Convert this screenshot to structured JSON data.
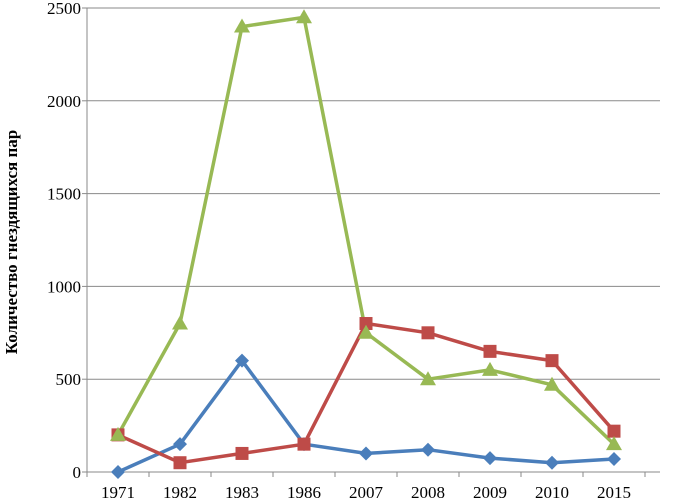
{
  "chart_data": {
    "type": "line",
    "title": "",
    "xlabel": "",
    "ylabel": "Количество гнездящихся пар",
    "categories": [
      "1971",
      "1982",
      "1983",
      "1986",
      "2007",
      "2008",
      "2009",
      "2010",
      "2015"
    ],
    "ylim": [
      0,
      2500
    ],
    "yticks": [
      "0",
      "500",
      "1000",
      "1500",
      "2000",
      "2500"
    ],
    "grid": "horizontal",
    "legend": "none",
    "series": [
      {
        "color": "#4a7ebb",
        "marker": "diamond",
        "values": [
          0,
          150,
          600,
          150,
          100,
          120,
          75,
          50,
          70
        ]
      },
      {
        "color": "#be4b48",
        "marker": "square",
        "values": [
          200,
          50,
          100,
          150,
          800,
          750,
          650,
          600,
          220
        ]
      },
      {
        "color": "#98b954",
        "marker": "triangle",
        "values": [
          200,
          800,
          2400,
          2450,
          750,
          500,
          550,
          470,
          150
        ]
      }
    ]
  }
}
